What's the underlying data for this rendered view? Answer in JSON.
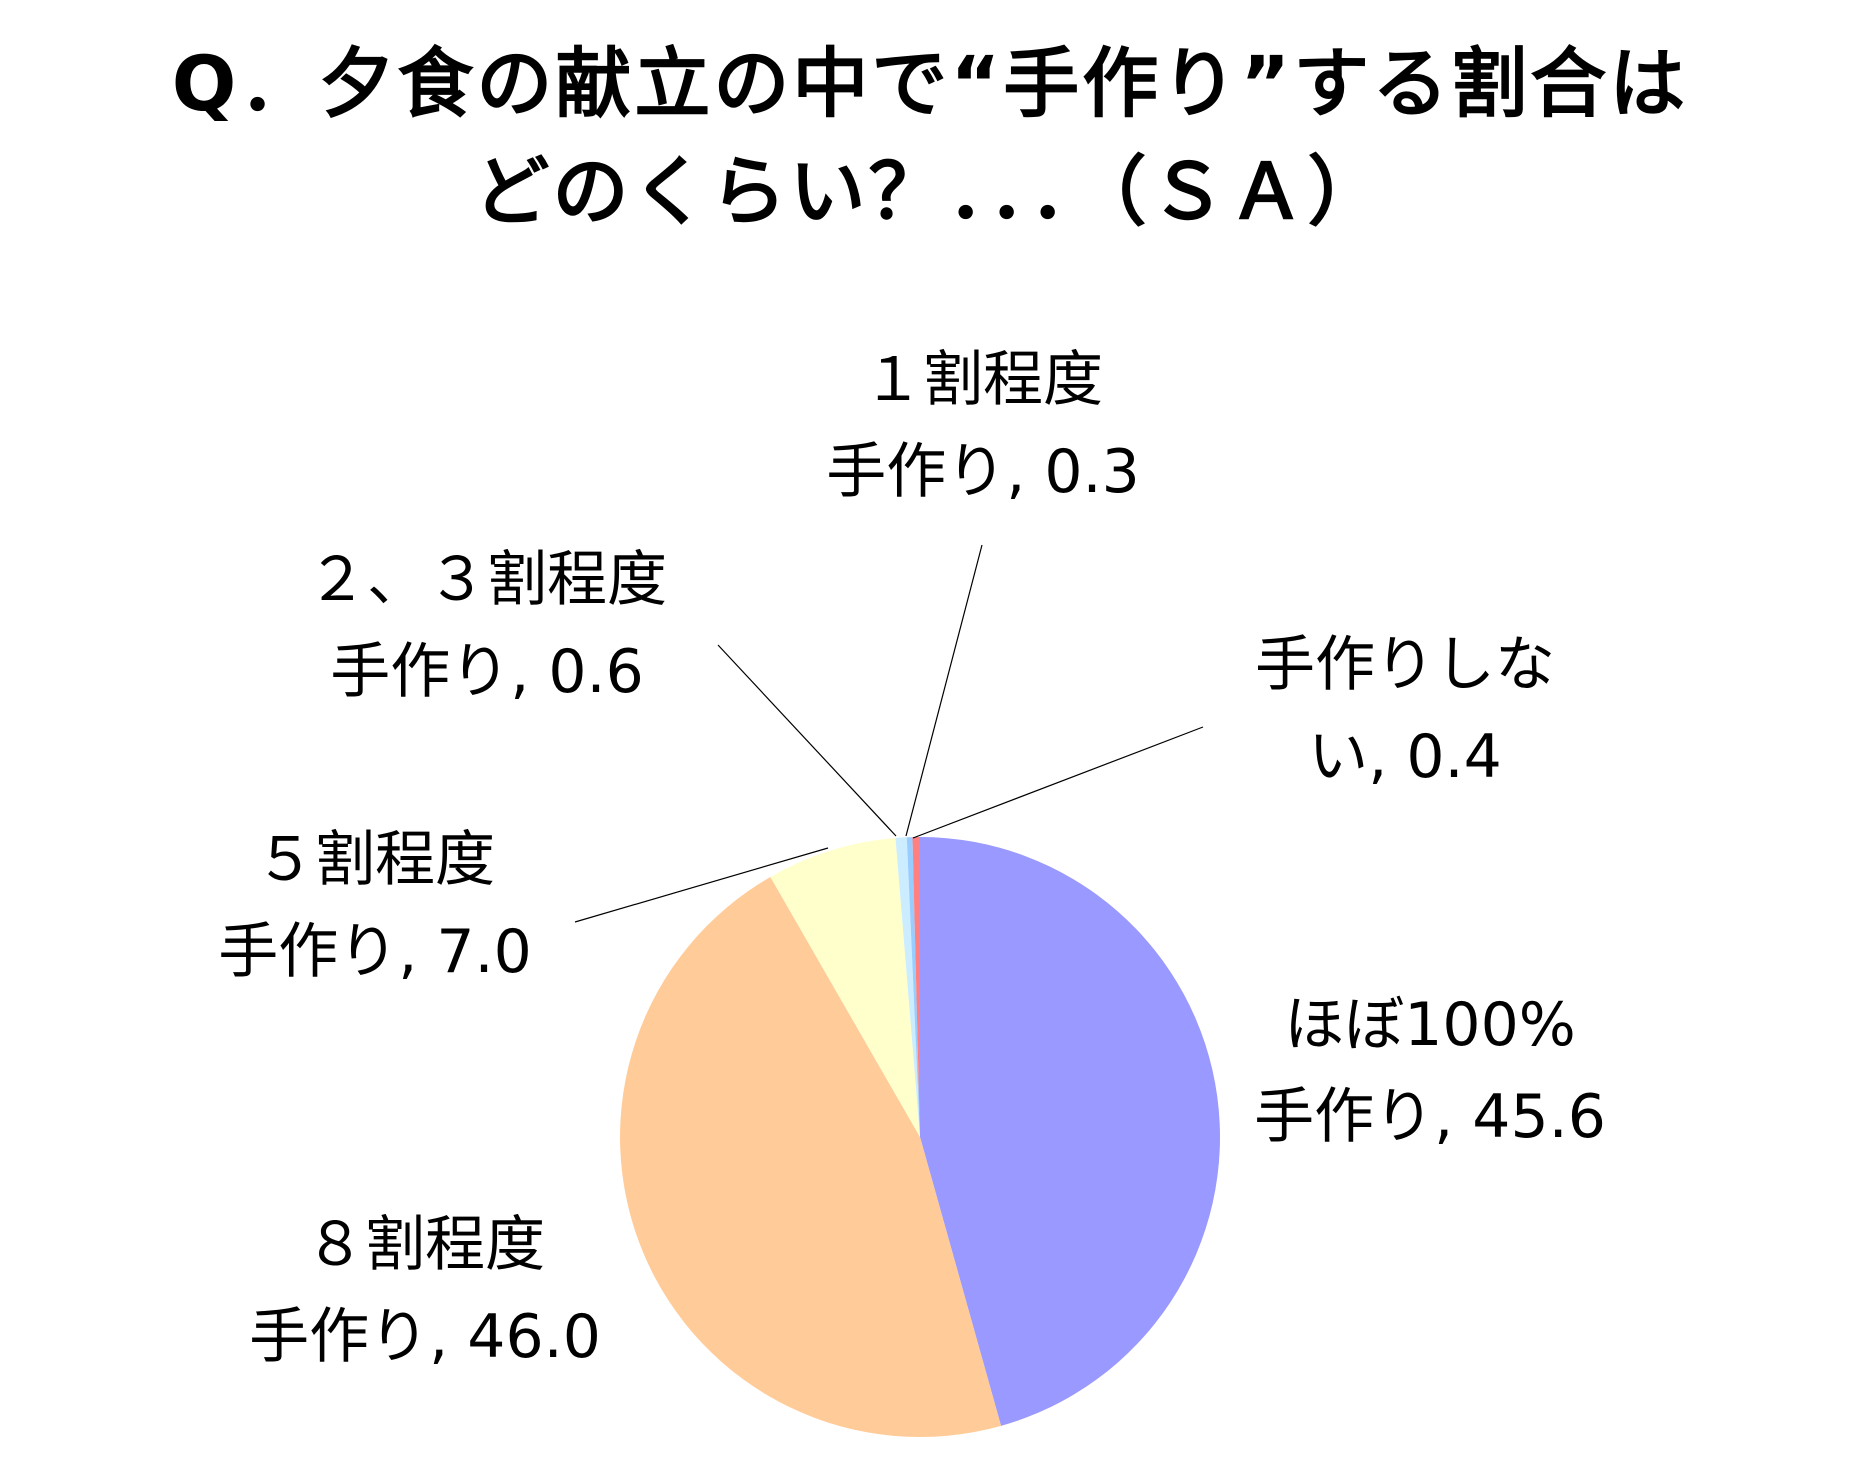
{
  "chart_data": {
    "type": "pie",
    "title": "Q．夕食の献立の中で“手作り”する割合は\nどのくらい？．．．（ＳＡ）",
    "slices": [
      {
        "line1": "ほぼ100%",
        "line2": "手作り, 45.6",
        "value": 45.6,
        "color": "#9999ff"
      },
      {
        "line1": "８割程度",
        "line2": "手作り, 46.0",
        "value": 46.0,
        "color": "#ffcc99"
      },
      {
        "line1": "５割程度",
        "line2": "手作り, 7.0",
        "value": 7.0,
        "color": "#ffffcc"
      },
      {
        "line1": "２、３割程度",
        "line2": "手作り, 0.6",
        "value": 0.6,
        "color": "#ccecff"
      },
      {
        "line1": "１割程度",
        "line2": "手作り, 0.3",
        "value": 0.3,
        "color": "#99ccff"
      },
      {
        "line1": "手作りしな",
        "line2": "い, 0.4",
        "value": 0.4,
        "color": "#ff8080"
      }
    ],
    "start_angle": "12 o'clock",
    "direction": "clockwise",
    "legend": "none"
  }
}
